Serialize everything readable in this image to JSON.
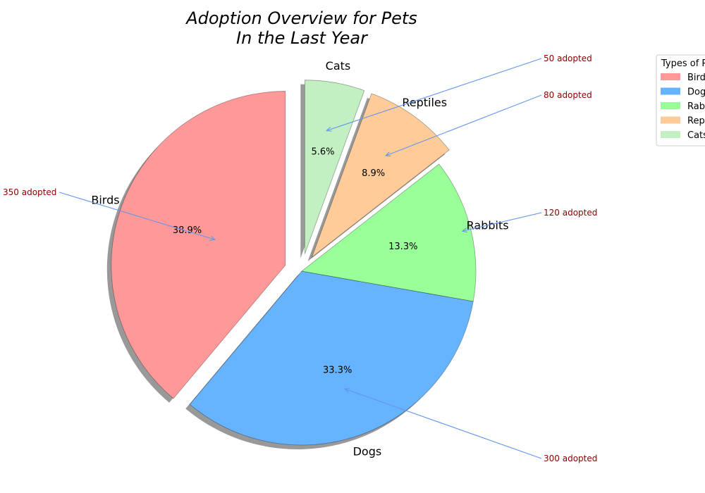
{
  "chart_data": {
    "type": "pie",
    "title_lines": [
      "Adoption Overview for Pets",
      "In the Last Year"
    ],
    "categories": [
      "Birds",
      "Dogs",
      "Rabbits",
      "Reptiles",
      "Cats"
    ],
    "values": [
      350,
      300,
      120,
      80,
      50
    ],
    "percent_labels": [
      "38.9%",
      "33.3%",
      "13.3%",
      "8.9%",
      "5.6%"
    ],
    "annotations": [
      "350 adopted",
      "300 adopted",
      "120 adopted",
      "80 adopted",
      "50 adopted"
    ],
    "colors": [
      "#ff9999",
      "#66b3ff",
      "#99ff99",
      "#ffcc99",
      "#c2f0c2"
    ],
    "explode": [
      0.1,
      0,
      0,
      0.1,
      0.1
    ],
    "start_angle_deg": 90,
    "shadow": true,
    "legend": {
      "title": "Types of Pets",
      "labels": [
        "Birds",
        "Dogs",
        "Rabbits",
        "Reptiles",
        "Cats"
      ],
      "position": "upper-right"
    },
    "annotation_arrow_color": "#6495ed",
    "annotation_text_color": "#8b0000"
  }
}
